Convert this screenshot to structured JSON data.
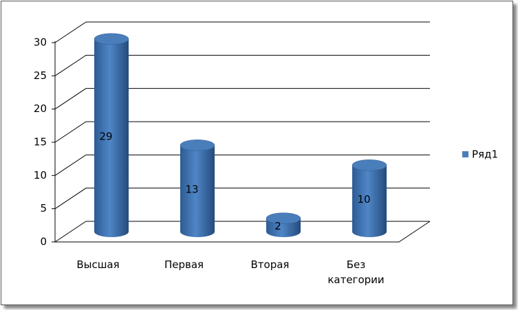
{
  "chart_data": {
    "type": "bar",
    "categories": [
      "Высшая",
      "Первая",
      "Вторая",
      "Без категории"
    ],
    "series": [
      {
        "name": "Ряд1",
        "color": "#4a7ebb",
        "values": [
          29,
          13,
          2,
          10
        ]
      }
    ],
    "ylim": [
      0,
      30
    ],
    "yticks": [
      0,
      5,
      10,
      15,
      20,
      25,
      30
    ],
    "grid": true,
    "legend": "right"
  }
}
